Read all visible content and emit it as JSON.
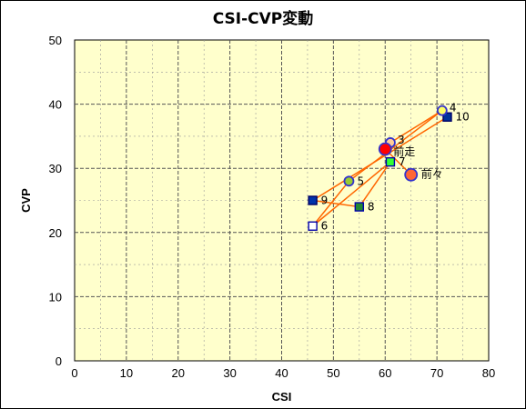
{
  "chart_data": {
    "type": "scatter",
    "title": "CSI-CVP変動",
    "xlabel": "CSI",
    "ylabel": "CVP",
    "xlim": [
      0,
      80
    ],
    "ylim": [
      0,
      50
    ],
    "xticks": [
      0,
      10,
      20,
      30,
      40,
      50,
      60,
      70,
      80
    ],
    "yticks": [
      0,
      10,
      20,
      30,
      40,
      50
    ],
    "grid": true,
    "background": "#ffffcc",
    "line_color": "#ff6600",
    "points": [
      {
        "label": "前々",
        "x": 65,
        "y": 29,
        "marker": "circle",
        "fill": "#ff6633",
        "stroke": "#3333cc"
      },
      {
        "label": "前走",
        "x": 60,
        "y": 33,
        "marker": "circle",
        "fill": "#ff0000",
        "stroke": "#3333cc"
      },
      {
        "label": "3",
        "x": 61,
        "y": 34,
        "marker": "circle",
        "fill": "#ffcc99",
        "stroke": "#3333cc"
      },
      {
        "label": "4",
        "x": 71,
        "y": 39,
        "marker": "circle",
        "fill": "#ffff66",
        "stroke": "#3333cc"
      },
      {
        "label": "5",
        "x": 53,
        "y": 28,
        "marker": "circle",
        "fill": "#99cc33",
        "stroke": "#3333cc"
      },
      {
        "label": "6",
        "x": 46,
        "y": 21,
        "marker": "square",
        "fill": "#ffffff",
        "stroke": "#0000aa"
      },
      {
        "label": "7",
        "x": 61,
        "y": 31,
        "marker": "square",
        "fill": "#33ff33",
        "stroke": "#0000aa"
      },
      {
        "label": "8",
        "x": 55,
        "y": 24,
        "marker": "square",
        "fill": "#228833",
        "stroke": "#0000aa"
      },
      {
        "label": "9",
        "x": 46,
        "y": 25,
        "marker": "square",
        "fill": "#0033aa",
        "stroke": "#000066"
      },
      {
        "label": "10",
        "x": 72,
        "y": 38,
        "marker": "square",
        "fill": "#003399",
        "stroke": "#000066"
      }
    ],
    "path_order": [
      "10",
      "9",
      "8",
      "7",
      "6",
      "5",
      "4",
      "3",
      "前走",
      "前々"
    ]
  }
}
